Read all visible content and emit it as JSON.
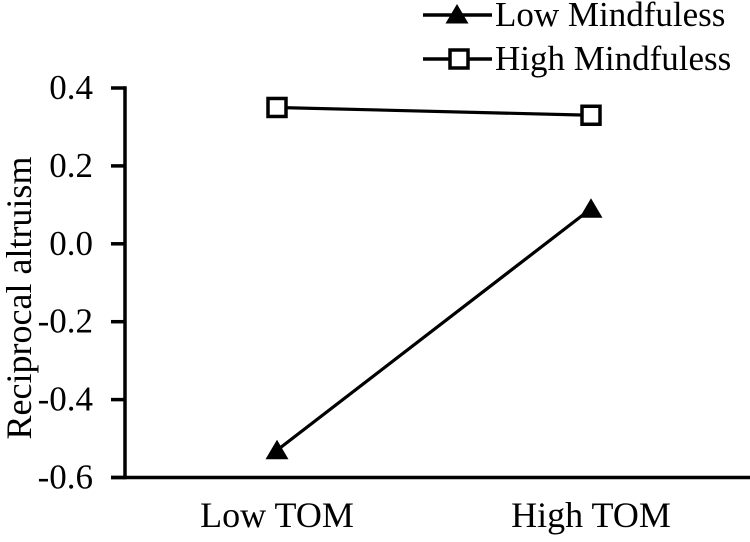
{
  "chart_data": {
    "type": "line",
    "categories": [
      "Low TOM",
      "High TOM"
    ],
    "series": [
      {
        "name": "Low Mindfuless",
        "marker": "filled-triangle",
        "values": [
          -0.53,
          0.09
        ]
      },
      {
        "name": "High Mindfuless",
        "marker": "open-square",
        "values": [
          0.35,
          0.33
        ]
      }
    ],
    "title": "",
    "xlabel": "",
    "ylabel": "Reciprocal altruism",
    "ylim": [
      -0.6,
      0.4
    ],
    "yticks": [
      0.4,
      0.2,
      0.0,
      -0.2,
      -0.4,
      -0.6
    ],
    "grid": false,
    "legend_position": "top-right",
    "colors": {
      "line": "#000000",
      "text": "#000000",
      "background": "#ffffff"
    }
  }
}
